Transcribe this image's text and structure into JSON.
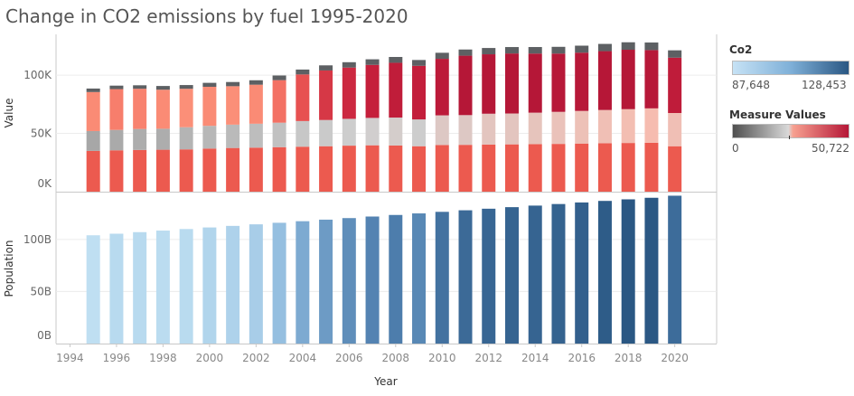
{
  "title": "Change in CO2 emissions by fuel 1995-2020",
  "legends": {
    "co2": {
      "title": "Co2",
      "min_label": "87,648",
      "max_label": "128,453",
      "colors": [
        "#c6e2f5",
        "#2a5783"
      ]
    },
    "measure": {
      "title": "Measure Values",
      "min_label": "0",
      "max_label": "50,722",
      "colors": [
        "#4f4f4f",
        "#d9d9d9",
        "#f7a090",
        "#b51737"
      ]
    }
  },
  "chart_data": [
    {
      "type": "bar",
      "stacked": true,
      "ylabel": "Value",
      "ylim": [
        0,
        135000
      ],
      "yticks": [
        0,
        50000,
        100000
      ],
      "ytick_labels": [
        "0K",
        "50K",
        "100K"
      ],
      "x": [
        1995,
        1996,
        1997,
        1998,
        1999,
        2000,
        2001,
        2002,
        2003,
        2004,
        2005,
        2006,
        2007,
        2008,
        2009,
        2010,
        2011,
        2012,
        2013,
        2014,
        2015,
        2016,
        2017,
        2018,
        2019,
        2020
      ],
      "series": [
        {
          "values": [
            35000,
            35500,
            35800,
            36000,
            36300,
            37000,
            37500,
            37800,
            38200,
            38600,
            39000,
            39500,
            39800,
            39600,
            39000,
            40000,
            40200,
            40400,
            40600,
            40800,
            41000,
            41300,
            41600,
            41800,
            42000,
            39000
          ]
        },
        {
          "values": [
            17000,
            17500,
            18000,
            18000,
            19000,
            19500,
            20000,
            20500,
            21000,
            22000,
            22500,
            23000,
            23500,
            24000,
            23000,
            25500,
            25500,
            26500,
            26500,
            27000,
            27500,
            28000,
            28500,
            29000,
            29500,
            28500
          ]
        },
        {
          "values": [
            33500,
            35000,
            34500,
            33500,
            33000,
            33500,
            33000,
            33500,
            36500,
            40000,
            42500,
            44000,
            45500,
            47000,
            46000,
            48500,
            51000,
            51000,
            51500,
            50722,
            50000,
            50000,
            50500,
            51000,
            50000,
            47500
          ]
        },
        {
          "values": [
            3000,
            3000,
            3000,
            3200,
            3200,
            3400,
            3600,
            3800,
            4000,
            4200,
            4400,
            4600,
            4800,
            5000,
            5000,
            5200,
            5300,
            5400,
            5500,
            5600,
            5800,
            6000,
            6200,
            6400,
            6500,
            6300
          ]
        }
      ]
    },
    {
      "type": "bar",
      "ylabel": "Population",
      "xlabel": "Year",
      "ylim": [
        0,
        145000
      ],
      "yticks": [
        0,
        50000,
        100000
      ],
      "ytick_labels": [
        "0B",
        "50B",
        "100B"
      ],
      "x": [
        1995,
        1996,
        1997,
        1998,
        1999,
        2000,
        2001,
        2002,
        2003,
        2004,
        2005,
        2006,
        2007,
        2008,
        2009,
        2010,
        2011,
        2012,
        2013,
        2014,
        2015,
        2016,
        2017,
        2018,
        2019,
        2020
      ],
      "values": [
        104000,
        105500,
        107000,
        108500,
        110000,
        111500,
        113000,
        114500,
        116000,
        117500,
        119000,
        120500,
        122000,
        123500,
        125000,
        126500,
        128000,
        129500,
        131000,
        132500,
        134000,
        135500,
        137000,
        138500,
        140000,
        142000
      ],
      "color_by_co2": [
        87648,
        89400,
        89500,
        88600,
        89200,
        91300,
        92100,
        93800,
        98800,
        104500,
        108100,
        111300,
        113800,
        115500,
        112800,
        119200,
        122000,
        123300,
        124100,
        124100,
        124500,
        125300,
        126800,
        128453,
        128000,
        121300
      ],
      "xticks": [
        1994,
        1996,
        1998,
        2000,
        2002,
        2004,
        2006,
        2008,
        2010,
        2012,
        2014,
        2016,
        2018,
        2020
      ]
    }
  ]
}
